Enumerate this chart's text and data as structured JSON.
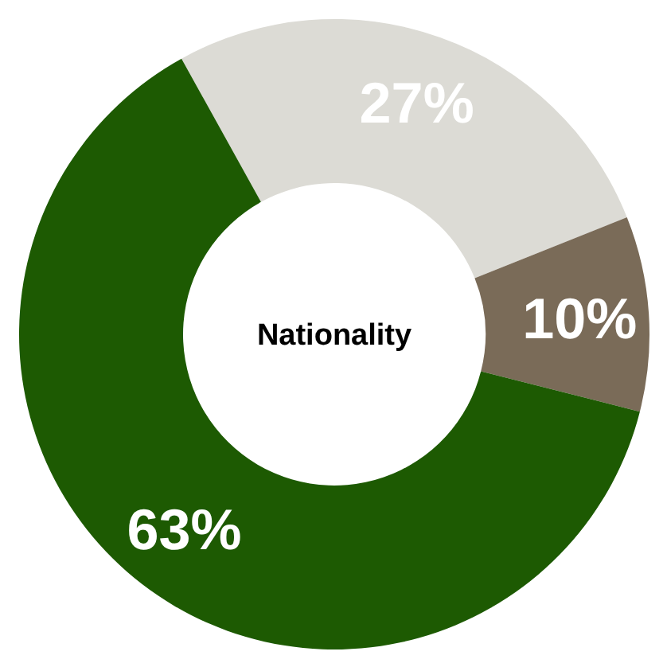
{
  "chart_data": {
    "type": "donut",
    "title": "Nationality",
    "categories": [
      null,
      null,
      null
    ],
    "values": [
      27,
      10,
      63
    ],
    "colors": [
      "#dcdbd5",
      "#7a6b58",
      "#1d5a02"
    ],
    "value_labels": [
      "27%",
      "10%",
      "63%"
    ]
  }
}
